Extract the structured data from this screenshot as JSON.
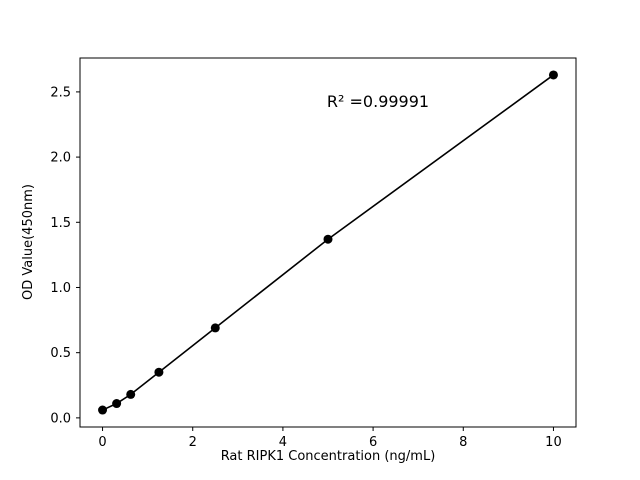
{
  "chart_data": {
    "type": "scatter",
    "x": [
      0,
      0.3125,
      0.625,
      1.25,
      2.5,
      5,
      10
    ],
    "y": [
      0.06,
      0.11,
      0.18,
      0.35,
      0.69,
      1.37,
      2.63
    ],
    "series_note": "single series standard curve with fitted straight line through points",
    "title": "",
    "xlabel": "Rat RIPK1 Concentration (ng/mL)",
    "ylabel": "OD Value(450nm)",
    "annotation": "R² =0.99991",
    "annotation_axes_fraction": [
      0.6,
      0.12
    ],
    "xlim": [
      -0.5,
      10.5
    ],
    "ylim": [
      -0.07,
      2.76
    ],
    "xticks": [
      0,
      2,
      4,
      6,
      8,
      10
    ],
    "xtick_labels": [
      "0",
      "2",
      "4",
      "6",
      "8",
      "10"
    ],
    "yticks": [
      0.0,
      0.5,
      1.0,
      1.5,
      2.0,
      2.5
    ],
    "ytick_labels": [
      "0.0",
      "0.5",
      "1.0",
      "1.5",
      "2.0",
      "2.5"
    ],
    "grid": false,
    "legend": "none",
    "line": true,
    "line_color": "#000000",
    "marker_color": "#000000",
    "background_color": "#ffffff"
  }
}
